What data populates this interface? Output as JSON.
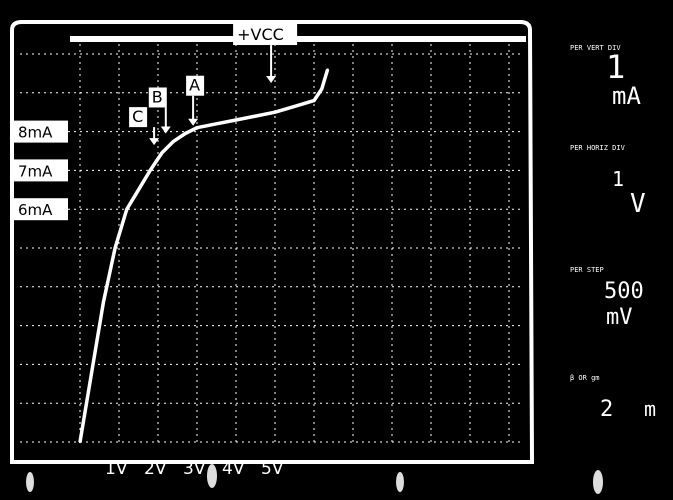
{
  "chart_data": {
    "type": "line",
    "title": "",
    "xlabel": "",
    "ylabel": "",
    "x_tick_labels": [
      "1V",
      "2V",
      "3V",
      "4V",
      "5V"
    ],
    "y_tick_labels": [
      "8mA",
      "7mA",
      "6mA"
    ],
    "series": [
      {
        "name": "",
        "points": [
          [
            0.0,
            0.0
          ],
          [
            0.3,
            1.8
          ],
          [
            0.6,
            3.6
          ],
          [
            0.9,
            5.0
          ],
          [
            1.2,
            6.0
          ],
          [
            1.5,
            6.5
          ],
          [
            1.8,
            7.0
          ],
          [
            2.1,
            7.45
          ],
          [
            2.4,
            7.75
          ],
          [
            2.7,
            7.95
          ],
          [
            3.0,
            8.1
          ],
          [
            3.5,
            8.2
          ],
          [
            4.0,
            8.3
          ],
          [
            4.5,
            8.4
          ],
          [
            5.0,
            8.5
          ],
          [
            5.5,
            8.65
          ],
          [
            6.0,
            8.8
          ],
          [
            6.2,
            9.1
          ],
          [
            6.35,
            9.6
          ]
        ]
      }
    ],
    "annotations": [
      {
        "label": "A",
        "x": 2.9,
        "y": 8.1
      },
      {
        "label": "B",
        "x": 2.2,
        "y": 7.9
      },
      {
        "label": "C",
        "x": 1.9,
        "y": 7.6
      },
      {
        "label": "+VCC",
        "x": 4.9,
        "y": 9.2
      }
    ],
    "grid": true
  },
  "settings_panel": {
    "vert_per_div_value": "1",
    "vert_per_div_unit": "mA",
    "horiz_per_div_value": "1",
    "horiz_per_div_unit": "V",
    "step_value": "500",
    "step_unit": "mV",
    "extra_value": "2",
    "extra_unit": "m"
  }
}
